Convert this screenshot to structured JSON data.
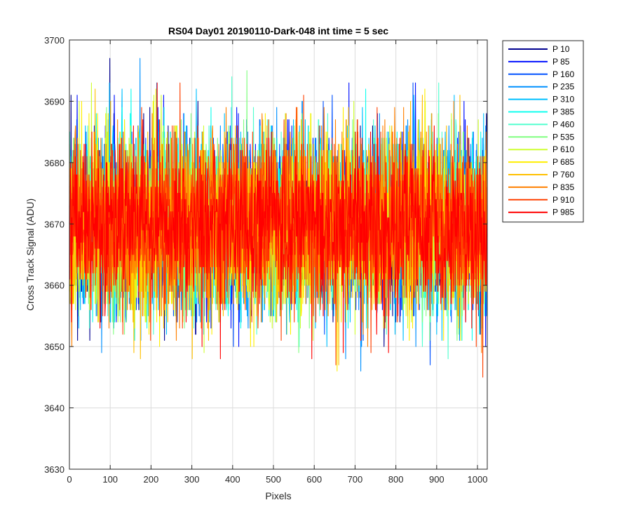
{
  "chart_data": {
    "type": "line",
    "title": "RS04 Day01 20190110-Dark-048 int time = 5 sec",
    "xlabel": "Pixels",
    "ylabel": "Cross Track Signal (ADU)",
    "xlim": [
      0,
      1024
    ],
    "ylim": [
      3630,
      3700
    ],
    "xticks": [
      0,
      100,
      200,
      300,
      400,
      500,
      600,
      700,
      800,
      900,
      1000
    ],
    "yticks": [
      3630,
      3640,
      3650,
      3660,
      3670,
      3680,
      3690,
      3700
    ],
    "grid": true,
    "legend_position": "outside-top-right",
    "noise_model": {
      "mean": 3670,
      "std": 7,
      "min": 3639,
      "max": 3697
    },
    "series": [
      {
        "name": "P 10",
        "color": "#00008F"
      },
      {
        "name": "P 85",
        "color": "#0010FF"
      },
      {
        "name": "P 160",
        "color": "#0050FF"
      },
      {
        "name": "P 235",
        "color": "#0090FF"
      },
      {
        "name": "P 310",
        "color": "#00C0FF"
      },
      {
        "name": "P 385",
        "color": "#10FFEF"
      },
      {
        "name": "P 460",
        "color": "#50FFCF"
      },
      {
        "name": "P 535",
        "color": "#80FF80"
      },
      {
        "name": "P 610",
        "color": "#CFFF30"
      },
      {
        "name": "P 685",
        "color": "#FFEF00"
      },
      {
        "name": "P 760",
        "color": "#FFC000"
      },
      {
        "name": "P 835",
        "color": "#FF8000"
      },
      {
        "name": "P 910",
        "color": "#FF4000"
      },
      {
        "name": "P 985",
        "color": "#FF0000"
      }
    ]
  }
}
